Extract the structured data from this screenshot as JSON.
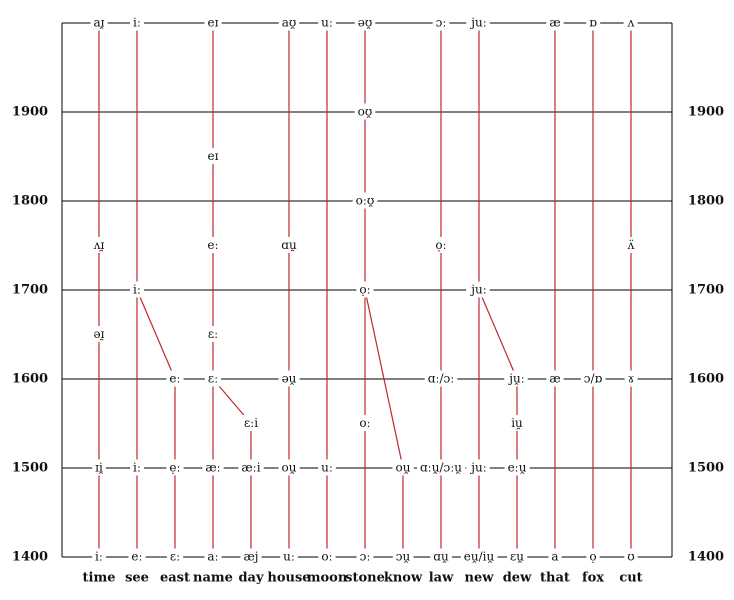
{
  "years": [
    1900,
    1800,
    1700,
    1600,
    1500,
    1400
  ],
  "columns": [
    {
      "word": "time",
      "nodes": [
        {
          "label": "aɪ̯",
          "year": 2000
        },
        {
          "label": "ʌɪ̯",
          "year": 1750
        },
        {
          "label": "əɪ̯",
          "year": 1650
        },
        {
          "label": "ɪi̯",
          "year": 1500
        },
        {
          "label": "iː",
          "year": 1400
        }
      ]
    },
    {
      "word": "see",
      "nodes": [
        {
          "label": "iː",
          "year": 2000
        },
        {
          "label": "iː",
          "year": 1700
        },
        {
          "label": "iː",
          "year": 1500
        },
        {
          "label": "eː",
          "year": 1400
        }
      ]
    },
    {
      "word": "east",
      "nodes": [
        {
          "label": "eː",
          "year": 1600
        },
        {
          "label": "ẹː",
          "year": 1500
        },
        {
          "label": "ɛː",
          "year": 1400
        }
      ]
    },
    {
      "word": "name",
      "nodes": [
        {
          "label": "eɪ",
          "year": 2000
        },
        {
          "label": "eɪ",
          "year": 1850
        },
        {
          "label": "eː",
          "year": 1750
        },
        {
          "label": "ɛː",
          "year": 1650
        },
        {
          "label": "ɛː",
          "year": 1600
        },
        {
          "label": "æː",
          "year": 1500
        },
        {
          "label": "aː",
          "year": 1400
        }
      ]
    },
    {
      "word": "day",
      "nodes": [
        {
          "label": "ɛːi",
          "year": 1550
        },
        {
          "label": "æːi",
          "year": 1500
        },
        {
          "label": "æj",
          "year": 1400
        }
      ]
    },
    {
      "word": "house",
      "nodes": [
        {
          "label": "aʊ̯",
          "year": 2000
        },
        {
          "label": "ɑu̯",
          "year": 1750
        },
        {
          "label": "əu̯",
          "year": 1600
        },
        {
          "label": "ou̯",
          "year": 1500
        },
        {
          "label": "uː",
          "year": 1400
        }
      ]
    },
    {
      "word": "moon",
      "nodes": [
        {
          "label": "uː",
          "year": 2000
        },
        {
          "label": "uː",
          "year": 1500
        },
        {
          "label": "oː",
          "year": 1400
        }
      ]
    },
    {
      "word": "stone",
      "nodes": [
        {
          "label": "əʊ̯",
          "year": 2000
        },
        {
          "label": "oʊ̯",
          "year": 1900
        },
        {
          "label": "oːʊ̯",
          "year": 1800
        },
        {
          "label": "ọː",
          "year": 1700
        },
        {
          "label": "oː",
          "year": 1550
        },
        {
          "label": "ɔː",
          "year": 1400
        }
      ]
    },
    {
      "word": "know",
      "nodes": [
        {
          "label": "ou̯",
          "year": 1500
        },
        {
          "label": "ɔu̯",
          "year": 1400
        }
      ]
    },
    {
      "word": "law",
      "nodes": [
        {
          "label": "ɔː",
          "year": 2000
        },
        {
          "label": "ọː",
          "year": 1750
        },
        {
          "label": "ɑː/ɔː",
          "year": 1600
        },
        {
          "label": "ɑːu̯/ɔːu̯",
          "year": 1500
        },
        {
          "label": "ɑu̯",
          "year": 1400
        }
      ]
    },
    {
      "word": "new",
      "nodes": [
        {
          "label": "juː",
          "year": 2000
        },
        {
          "label": "juː",
          "year": 1700
        },
        {
          "label": "juː",
          "year": 1500
        },
        {
          "label": "eu̯/iu̯",
          "year": 1400
        }
      ]
    },
    {
      "word": "dew",
      "nodes": [
        {
          "label": "ju̯ː",
          "year": 1600
        },
        {
          "label": "iu̯",
          "year": 1550
        },
        {
          "label": "eːu̯",
          "year": 1500
        },
        {
          "label": "ɛu̯",
          "year": 1400
        }
      ]
    },
    {
      "word": "that",
      "nodes": [
        {
          "label": "æ",
          "year": 2000
        },
        {
          "label": "æ",
          "year": 1600
        },
        {
          "label": "a",
          "year": 1400
        }
      ]
    },
    {
      "word": "fox",
      "nodes": [
        {
          "label": "ɒ",
          "year": 2000
        },
        {
          "label": "ɔ/ɒ",
          "year": 1600
        },
        {
          "label": "ọ",
          "year": 1400
        }
      ]
    },
    {
      "word": "cut",
      "nodes": [
        {
          "label": "ʌ",
          "year": 2000
        },
        {
          "label": "ʌ̈",
          "year": 1750
        },
        {
          "label": "ɤ",
          "year": 1600
        },
        {
          "label": "ʊ",
          "year": 1400
        }
      ]
    }
  ]
}
